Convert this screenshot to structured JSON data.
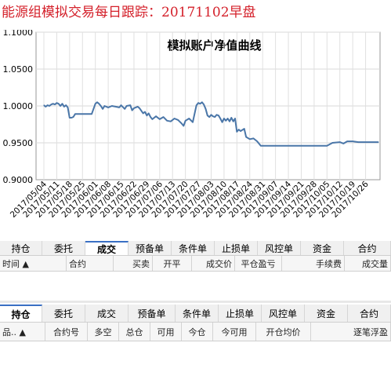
{
  "headline": "能源组模拟交易每日跟踪：20171102早盘",
  "chart_data": {
    "type": "line",
    "title": "模拟账户净值曲线",
    "ylim": [
      0.9,
      1.1
    ],
    "yticks": [
      "0.9000",
      "0.9500",
      "1.0000",
      "1.0500",
      "1.1000"
    ],
    "grid": true,
    "line_color": "#4a76a8",
    "xticks": [
      "2017/05/04",
      "2017/05/11",
      "2017/05/18",
      "2017/05/25",
      "2017/06/01",
      "2017/06/08",
      "2017/06/15",
      "2017/06/22",
      "2017/06/29",
      "2017/07/06",
      "2017/07/13",
      "2017/07/20",
      "2017/07/27",
      "2017/08/03",
      "2017/08/10",
      "2017/08/17",
      "2017/08/24",
      "2017/08/31",
      "2017/09/07",
      "2017/09/14",
      "2017/09/21",
      "2017/09/28",
      "2017/10/05",
      "2017/10/12",
      "2017/10/19",
      "2017/10/26"
    ],
    "series": [
      {
        "points": [
          [
            "2017/05/04",
            1.001
          ],
          [
            "2017/05/05",
            0.999
          ],
          [
            "2017/05/06",
            1.001
          ],
          [
            "2017/05/07",
            1.0
          ],
          [
            "2017/05/08",
            1.002
          ],
          [
            "2017/05/09",
            1.003
          ],
          [
            "2017/05/10",
            1.002
          ],
          [
            "2017/05/11",
            1.004
          ],
          [
            "2017/05/12",
            1.003
          ],
          [
            "2017/05/13",
            1.0
          ],
          [
            "2017/05/14",
            1.003
          ],
          [
            "2017/05/15",
            0.999
          ],
          [
            "2017/05/16",
            1.001
          ],
          [
            "2017/05/17",
            0.998
          ],
          [
            "2017/05/18",
            0.984
          ],
          [
            "2017/05/19",
            0.984
          ],
          [
            "2017/05/20",
            0.985
          ],
          [
            "2017/05/21",
            0.989
          ],
          [
            "2017/05/23",
            0.989
          ],
          [
            "2017/05/25",
            0.989
          ],
          [
            "2017/05/28",
            0.989
          ],
          [
            "2017/05/30",
            0.989
          ],
          [
            "2017/06/01",
            1.003
          ],
          [
            "2017/06/02",
            1.005
          ],
          [
            "2017/06/03",
            1.003
          ],
          [
            "2017/06/04",
            1.0
          ],
          [
            "2017/06/05",
            0.996
          ],
          [
            "2017/06/06",
            1.0
          ],
          [
            "2017/06/08",
            0.998
          ],
          [
            "2017/06/10",
            1.0
          ],
          [
            "2017/06/12",
            0.999
          ],
          [
            "2017/06/14",
            0.998
          ],
          [
            "2017/06/15",
            1.001
          ],
          [
            "2017/06/17",
            0.996
          ],
          [
            "2017/06/18",
            1.0
          ],
          [
            "2017/06/20",
            1.001
          ],
          [
            "2017/06/21",
            0.994
          ],
          [
            "2017/06/22",
            0.997
          ],
          [
            "2017/06/24",
            0.999
          ],
          [
            "2017/06/25",
            0.997
          ],
          [
            "2017/06/27",
            0.99
          ],
          [
            "2017/06/28",
            0.992
          ],
          [
            "2017/06/29",
            0.987
          ],
          [
            "2017/06/30",
            0.99
          ],
          [
            "2017/07/01",
            0.985
          ],
          [
            "2017/07/02",
            0.982
          ],
          [
            "2017/07/04",
            0.986
          ],
          [
            "2017/07/06",
            0.982
          ],
          [
            "2017/07/08",
            0.985
          ],
          [
            "2017/07/10",
            0.98
          ],
          [
            "2017/07/12",
            0.979
          ],
          [
            "2017/07/14",
            0.983
          ],
          [
            "2017/07/16",
            0.981
          ],
          [
            "2017/07/18",
            0.976
          ],
          [
            "2017/07/19",
            0.973
          ],
          [
            "2017/07/20",
            0.98
          ],
          [
            "2017/07/22",
            0.983
          ],
          [
            "2017/07/24",
            0.978
          ],
          [
            "2017/07/26",
            1.001
          ],
          [
            "2017/07/27",
            1.004
          ],
          [
            "2017/07/28",
            1.003
          ],
          [
            "2017/07/29",
            1.005
          ],
          [
            "2017/07/30",
            1.002
          ],
          [
            "2017/07/31",
            0.996
          ],
          [
            "2017/08/01",
            0.987
          ],
          [
            "2017/08/02",
            0.985
          ],
          [
            "2017/08/03",
            0.988
          ],
          [
            "2017/08/04",
            0.986
          ],
          [
            "2017/08/05",
            0.985
          ],
          [
            "2017/08/06",
            0.988
          ],
          [
            "2017/08/07",
            0.987
          ],
          [
            "2017/08/08",
            0.983
          ],
          [
            "2017/08/09",
            0.978
          ],
          [
            "2017/08/10",
            0.983
          ],
          [
            "2017/08/11",
            0.98
          ],
          [
            "2017/08/12",
            0.983
          ],
          [
            "2017/08/13",
            0.979
          ],
          [
            "2017/08/14",
            0.984
          ],
          [
            "2017/08/15",
            0.979
          ],
          [
            "2017/08/16",
            0.983
          ],
          [
            "2017/08/17",
            0.965
          ],
          [
            "2017/08/18",
            0.968
          ],
          [
            "2017/08/19",
            0.966
          ],
          [
            "2017/08/21",
            0.969
          ],
          [
            "2017/08/22",
            0.958
          ],
          [
            "2017/08/24",
            0.955
          ],
          [
            "2017/08/26",
            0.956
          ],
          [
            "2017/08/28",
            0.952
          ],
          [
            "2017/08/30",
            0.946
          ],
          [
            "2017/09/07",
            0.946
          ],
          [
            "2017/09/14",
            0.946
          ],
          [
            "2017/09/21",
            0.946
          ],
          [
            "2017/09/28",
            0.946
          ],
          [
            "2017/10/05",
            0.946
          ],
          [
            "2017/10/08",
            0.95
          ],
          [
            "2017/10/12",
            0.951
          ],
          [
            "2017/10/14",
            0.949
          ],
          [
            "2017/10/16",
            0.952
          ],
          [
            "2017/10/19",
            0.952
          ],
          [
            "2017/10/22",
            0.951
          ],
          [
            "2017/10/26",
            0.951
          ],
          [
            "2017/10/30",
            0.951
          ],
          [
            "2017/11/02",
            0.951
          ]
        ]
      }
    ]
  },
  "tabs1": [
    {
      "label": "持仓",
      "active": false
    },
    {
      "label": "委托",
      "active": false
    },
    {
      "label": "成交",
      "active": true
    },
    {
      "label": "预备单",
      "active": false
    },
    {
      "label": "条件单",
      "active": false
    },
    {
      "label": "止损单",
      "active": false
    },
    {
      "label": "风控单",
      "active": false
    },
    {
      "label": "资金",
      "active": false
    },
    {
      "label": "合约",
      "active": false
    }
  ],
  "table1_headers": [
    "时间 ▲",
    "合约",
    "买卖",
    "开平",
    "成交价",
    "平仓盈亏",
    "手续费",
    "成交量"
  ],
  "tabs2": [
    {
      "label": "持仓",
      "active": true
    },
    {
      "label": "委托",
      "active": false
    },
    {
      "label": "成交",
      "active": false
    },
    {
      "label": "预备单",
      "active": false
    },
    {
      "label": "条件单",
      "active": false
    },
    {
      "label": "止损单",
      "active": false
    },
    {
      "label": "风控单",
      "active": false
    },
    {
      "label": "资金",
      "active": false
    },
    {
      "label": "合约",
      "active": false
    }
  ],
  "table2_headers": [
    "品.. ▲",
    "合约号",
    "多空",
    "总仓",
    "可用",
    "今仓",
    "今可用",
    "开仓均价",
    "逐笔浮盈"
  ]
}
